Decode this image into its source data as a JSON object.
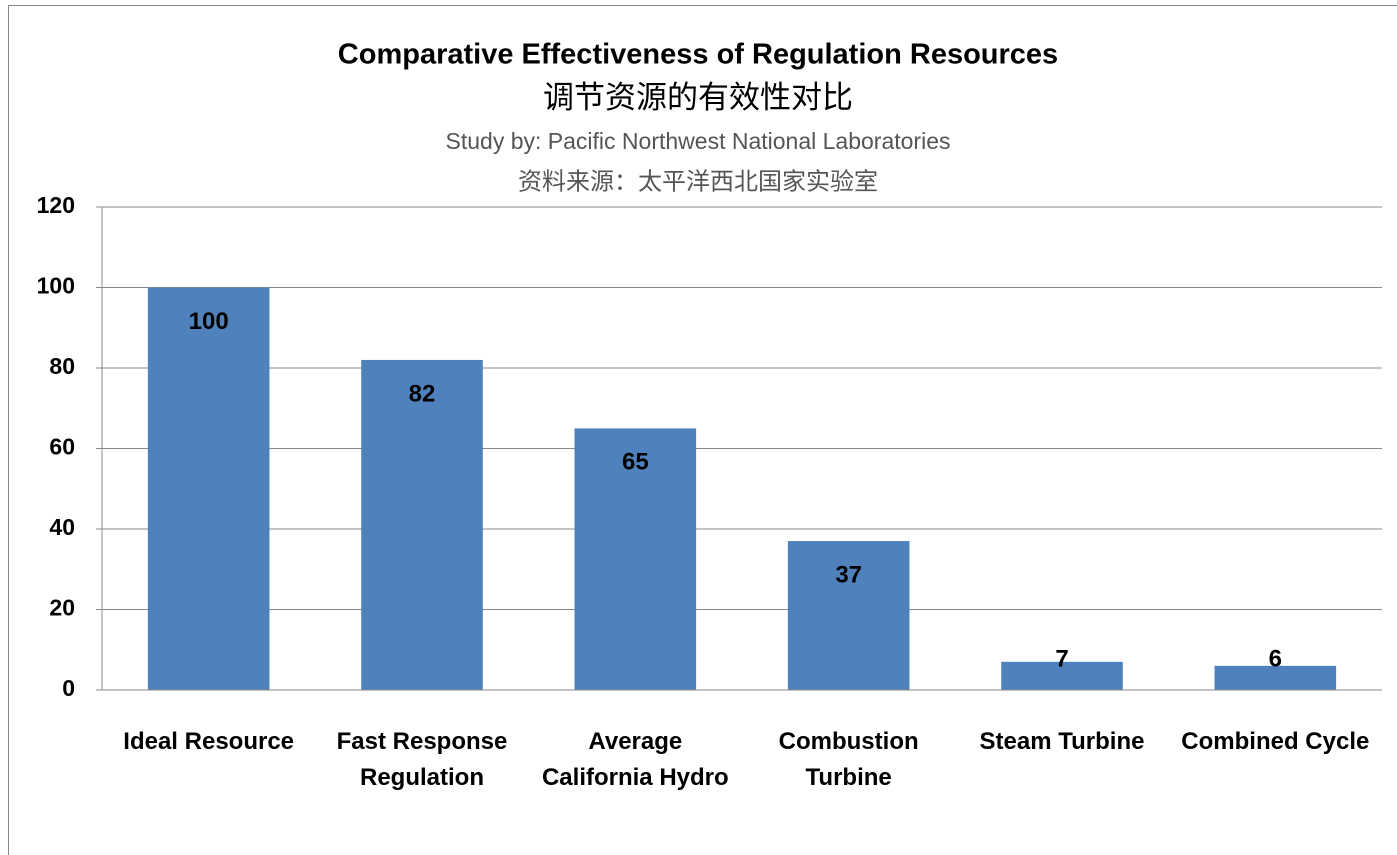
{
  "chart_data": {
    "type": "bar",
    "title": "Comparative Effectiveness of Regulation Resources",
    "title_cn": "调节资源的有效性对比",
    "subtitle": "Study by: Pacific Northwest National Laboratories",
    "subtitle_cn": "资料来源：太平洋西北国家实验室",
    "categories": [
      "Ideal Resource",
      "Fast Response\nRegulation",
      "Average\nCalifornia Hydro",
      "Combustion\nTurbine",
      "Steam Turbine",
      "Combined Cycle"
    ],
    "values": [
      100,
      82,
      65,
      37,
      7,
      6
    ],
    "color": "#4f81bd",
    "ylim": [
      0,
      120
    ],
    "yticks": [
      0,
      20,
      40,
      60,
      80,
      100,
      120
    ],
    "grid": true
  }
}
